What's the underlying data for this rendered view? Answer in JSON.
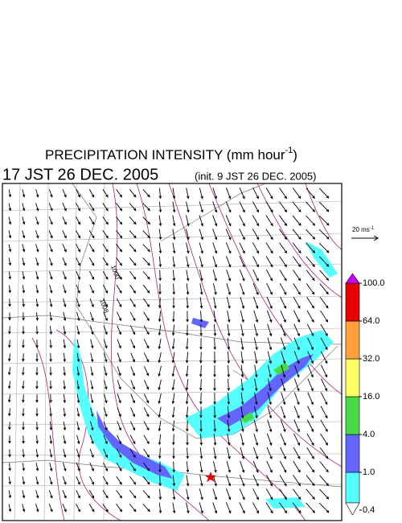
{
  "header": {
    "title": "PRECIPITATION INTENSITY (mm hour",
    "title_exponent": "-1",
    "title_close": ")",
    "valid_time": "17 JST 26 DEC. 2005",
    "init_time": "(init. 9 JST 26 DEC. 2005)"
  },
  "vector_legend": {
    "label": "20 ms",
    "exponent": "-1"
  },
  "contour_labels": [
    "1000",
    "1008"
  ],
  "colorbar": {
    "levels": [
      {
        "value": 0.4,
        "label": "0.4"
      },
      {
        "value": 1,
        "label": "1.0"
      },
      {
        "value": 4,
        "label": "4.0"
      },
      {
        "value": 16,
        "label": "16.0"
      },
      {
        "value": 32,
        "label": "32.0"
      },
      {
        "value": 64,
        "label": "64.0"
      },
      {
        "value": 100,
        "label": "100.0"
      }
    ],
    "colors": [
      "#55ffff",
      "#6464ff",
      "#46dc46",
      "#ffff64",
      "#ffa03c",
      "#e60000"
    ],
    "over_color": "#c800ff",
    "under_color": "#ffffff"
  }
}
